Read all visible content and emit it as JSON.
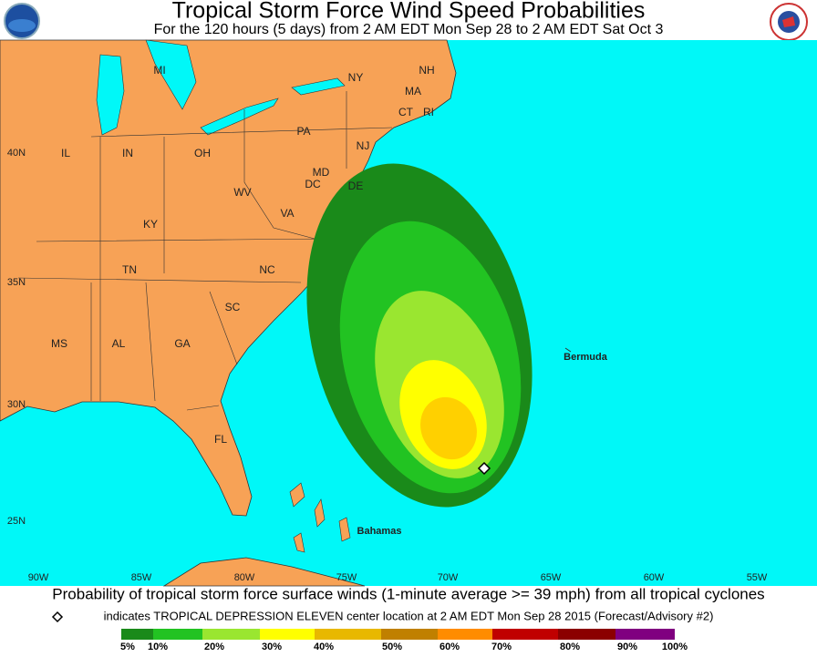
{
  "header": {
    "title": "Tropical Storm Force Wind Speed Probabilities",
    "subtitle": "For the 120 hours (5 days) from 2 AM EDT Mon Sep 28 to 2 AM EDT Sat Oct 3"
  },
  "map": {
    "state_labels": [
      "MI",
      "NY",
      "NH",
      "MA",
      "CT",
      "RI",
      "PA",
      "NJ",
      "OH",
      "IN",
      "IL",
      "MD",
      "DE",
      "DC",
      "WV",
      "VA",
      "KY",
      "TN",
      "NC",
      "SC",
      "GA",
      "AL",
      "MS",
      "FL"
    ],
    "place_labels": [
      "Bermuda",
      "Bahamas"
    ],
    "latitude_labels": [
      "40N",
      "35N",
      "30N",
      "25N"
    ],
    "longitude_labels": [
      "90W",
      "85W",
      "80W",
      "75W",
      "70W",
      "65W",
      "60W",
      "55W"
    ]
  },
  "footer": {
    "description": "Probability of tropical storm force surface winds (1-minute average >= 39 mph) from all tropical cyclones",
    "note": "indicates TROPICAL DEPRESSION ELEVEN center location at 2 AM EDT Mon Sep 28 2015 (Forecast/Advisory #2)"
  },
  "legend": {
    "labels": [
      "5%",
      "10%",
      "20%",
      "30%",
      "40%",
      "50%",
      "60%",
      "70%",
      "80%",
      "90%",
      "100%"
    ]
  }
}
